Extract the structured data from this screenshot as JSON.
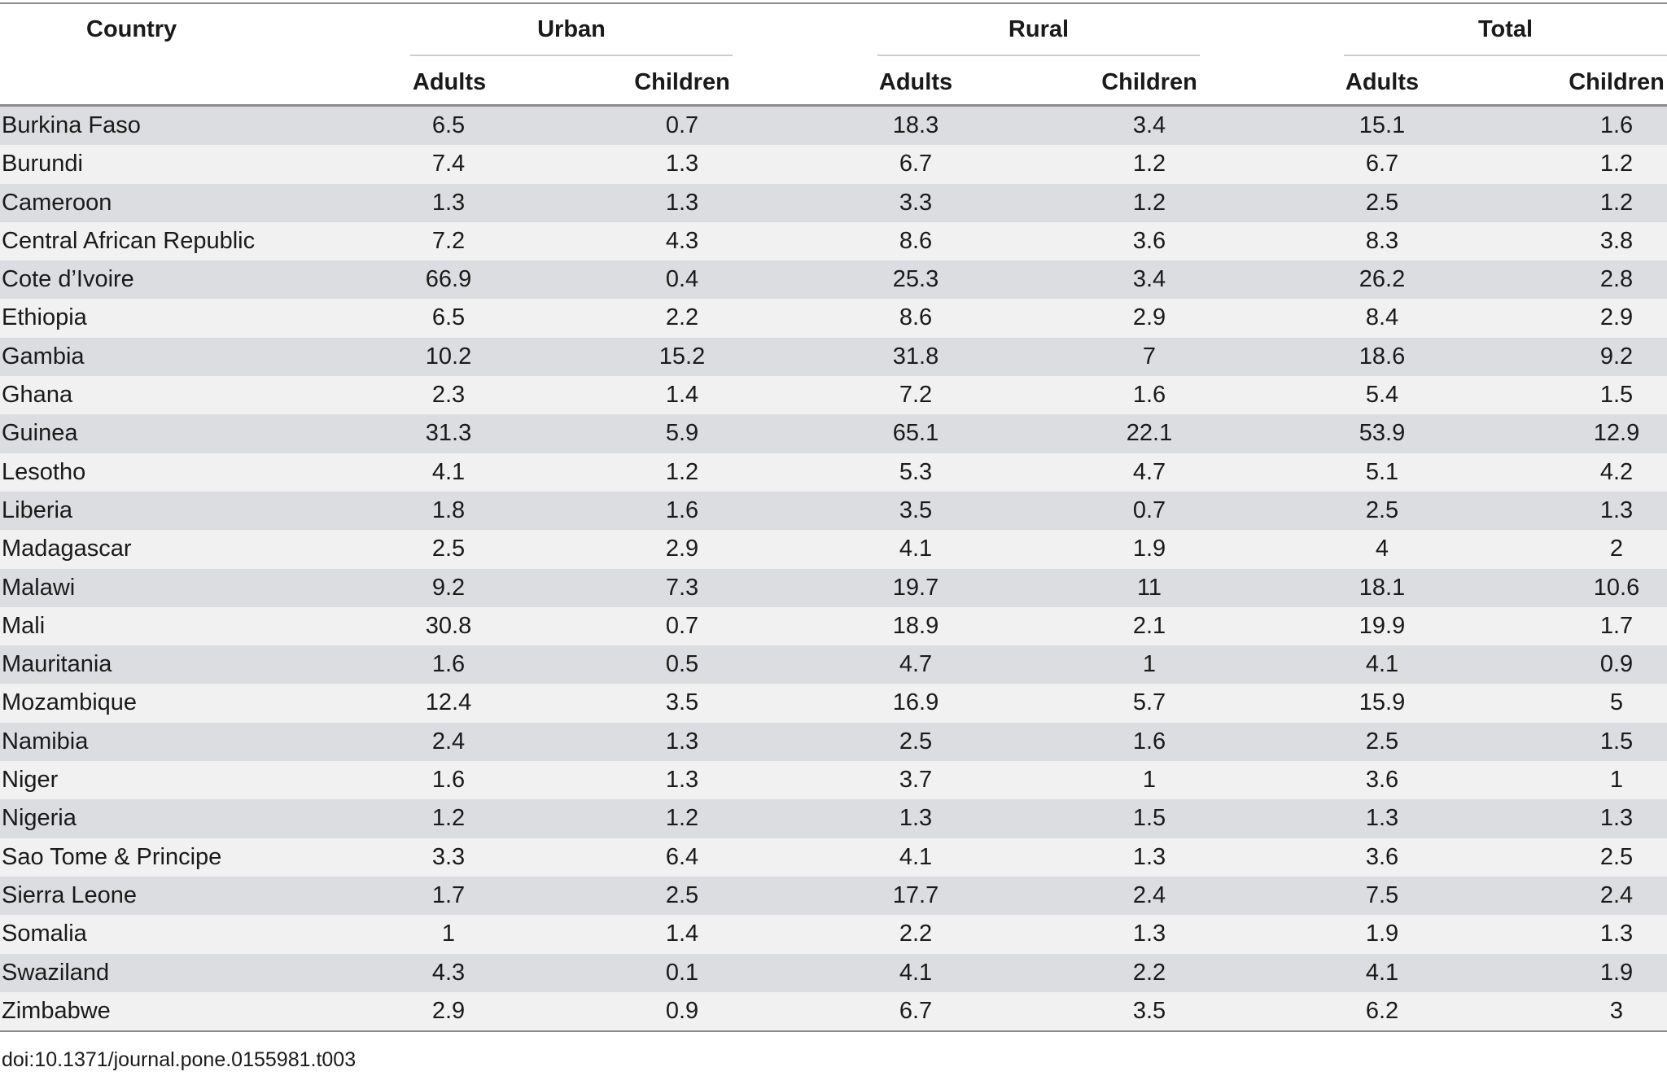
{
  "table": {
    "headers": {
      "country": "Country",
      "groups": [
        "Urban",
        "Rural",
        "Total"
      ],
      "subheaders": [
        "Adults",
        "Children",
        "Adults",
        "Children",
        "Adults",
        "Children"
      ]
    },
    "rows": [
      {
        "country": "Burkina Faso",
        "values": [
          "6.5",
          "0.7",
          "18.3",
          "3.4",
          "15.1",
          "1.6"
        ]
      },
      {
        "country": "Burundi",
        "values": [
          "7.4",
          "1.3",
          "6.7",
          "1.2",
          "6.7",
          "1.2"
        ]
      },
      {
        "country": "Cameroon",
        "values": [
          "1.3",
          "1.3",
          "3.3",
          "1.2",
          "2.5",
          "1.2"
        ]
      },
      {
        "country": "Central African Republic",
        "values": [
          "7.2",
          "4.3",
          "8.6",
          "3.6",
          "8.3",
          "3.8"
        ]
      },
      {
        "country": "Cote d’Ivoire",
        "values": [
          "66.9",
          "0.4",
          "25.3",
          "3.4",
          "26.2",
          "2.8"
        ]
      },
      {
        "country": "Ethiopia",
        "values": [
          "6.5",
          "2.2",
          "8.6",
          "2.9",
          "8.4",
          "2.9"
        ]
      },
      {
        "country": "Gambia",
        "values": [
          "10.2",
          "15.2",
          "31.8",
          "7",
          "18.6",
          "9.2"
        ]
      },
      {
        "country": "Ghana",
        "values": [
          "2.3",
          "1.4",
          "7.2",
          "1.6",
          "5.4",
          "1.5"
        ]
      },
      {
        "country": "Guinea",
        "values": [
          "31.3",
          "5.9",
          "65.1",
          "22.1",
          "53.9",
          "12.9"
        ]
      },
      {
        "country": "Lesotho",
        "values": [
          "4.1",
          "1.2",
          "5.3",
          "4.7",
          "5.1",
          "4.2"
        ]
      },
      {
        "country": "Liberia",
        "values": [
          "1.8",
          "1.6",
          "3.5",
          "0.7",
          "2.5",
          "1.3"
        ]
      },
      {
        "country": "Madagascar",
        "values": [
          "2.5",
          "2.9",
          "4.1",
          "1.9",
          "4",
          "2"
        ]
      },
      {
        "country": "Malawi",
        "values": [
          "9.2",
          "7.3",
          "19.7",
          "11",
          "18.1",
          "10.6"
        ]
      },
      {
        "country": "Mali",
        "values": [
          "30.8",
          "0.7",
          "18.9",
          "2.1",
          "19.9",
          "1.7"
        ]
      },
      {
        "country": "Mauritania",
        "values": [
          "1.6",
          "0.5",
          "4.7",
          "1",
          "4.1",
          "0.9"
        ]
      },
      {
        "country": "Mozambique",
        "values": [
          "12.4",
          "3.5",
          "16.9",
          "5.7",
          "15.9",
          "5"
        ]
      },
      {
        "country": "Namibia",
        "values": [
          "2.4",
          "1.3",
          "2.5",
          "1.6",
          "2.5",
          "1.5"
        ]
      },
      {
        "country": "Niger",
        "values": [
          "1.6",
          "1.3",
          "3.7",
          "1",
          "3.6",
          "1"
        ]
      },
      {
        "country": "Nigeria",
        "values": [
          "1.2",
          "1.2",
          "1.3",
          "1.5",
          "1.3",
          "1.3"
        ]
      },
      {
        "country": "Sao Tome & Principe",
        "values": [
          "3.3",
          "6.4",
          "4.1",
          "1.3",
          "3.6",
          "2.5"
        ]
      },
      {
        "country": "Sierra Leone",
        "values": [
          "1.7",
          "2.5",
          "17.7",
          "2.4",
          "7.5",
          "2.4"
        ]
      },
      {
        "country": "Somalia",
        "values": [
          "1",
          "1.4",
          "2.2",
          "1.3",
          "1.9",
          "1.3"
        ]
      },
      {
        "country": "Swaziland",
        "values": [
          "4.3",
          "0.1",
          "4.1",
          "2.2",
          "4.1",
          "1.9"
        ]
      },
      {
        "country": "Zimbabwe",
        "values": [
          "2.9",
          "0.9",
          "6.7",
          "3.5",
          "6.2",
          "3"
        ]
      }
    ]
  },
  "footnote": "doi:10.1371/journal.pone.0155981.t003"
}
